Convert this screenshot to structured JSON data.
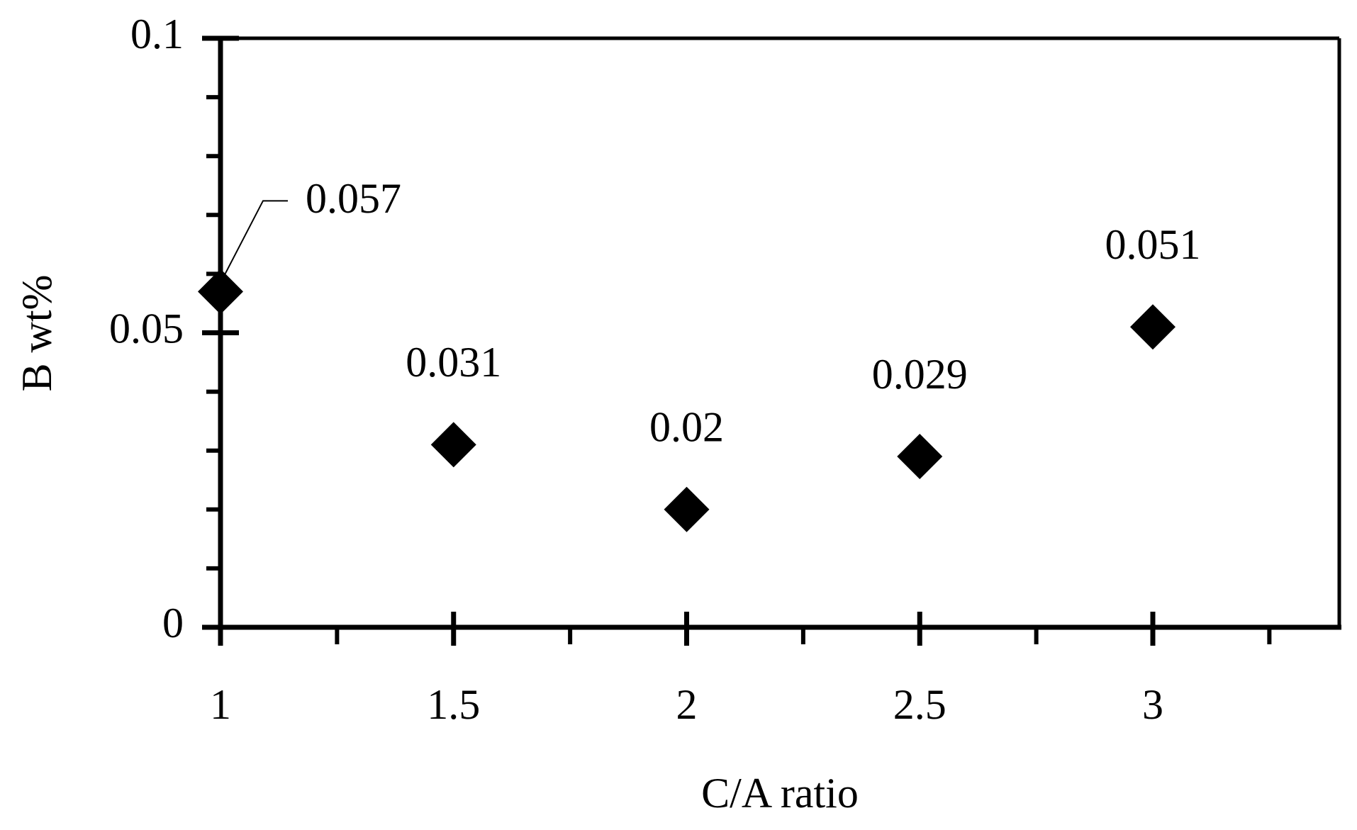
{
  "chart_data": {
    "type": "scatter",
    "x_label": "C/A ratio",
    "y_label": "B wt%",
    "x": [
      1,
      1.5,
      2,
      2.5,
      3
    ],
    "values": [
      0.057,
      0.031,
      0.02,
      0.029,
      0.051
    ],
    "color": "#000000",
    "xlim": [
      1,
      3.4
    ],
    "xticks": [
      1,
      1.5,
      2,
      2.5,
      3
    ],
    "xticks_minor": [
      1.25,
      1.75,
      2.25,
      2.75,
      3.25
    ],
    "ylim": [
      0,
      0.1
    ],
    "yticks": [
      0,
      0.05,
      0.1
    ],
    "yticks_minor": [
      0.01,
      0.02,
      0.03,
      0.04,
      0.06,
      0.07,
      0.08,
      0.09
    ],
    "grid": false
  }
}
